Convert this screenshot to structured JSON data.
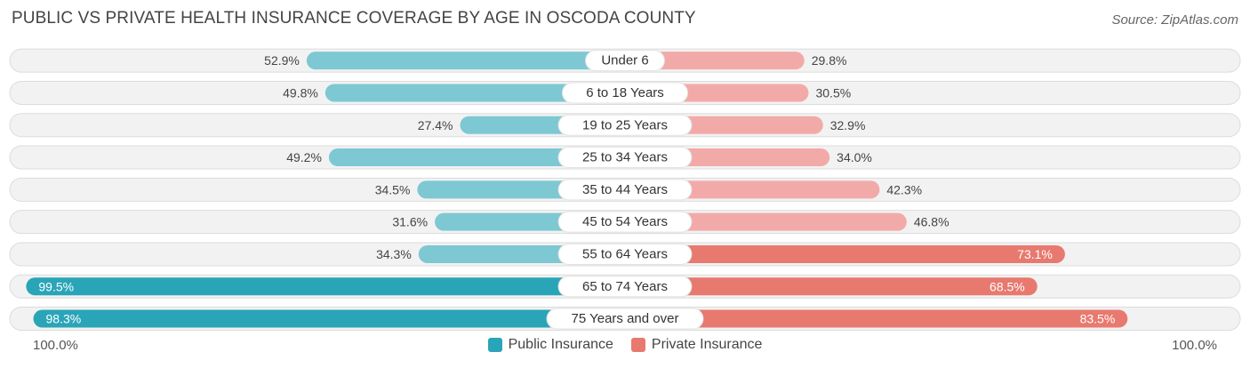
{
  "title": "PUBLIC VS PRIVATE HEALTH INSURANCE COVERAGE BY AGE IN OSCODA COUNTY",
  "source": "Source: ZipAtlas.com",
  "axis": {
    "left_label": "100.0%",
    "right_label": "100.0%"
  },
  "legend": {
    "public": "Public Insurance",
    "private": "Private Insurance"
  },
  "colors": {
    "public": "#7dc8d3",
    "public_strong": "#2aa5b8",
    "private": "#f2aaa8",
    "private_strong": "#e8796f",
    "row_bg": "#f2f2f2",
    "row_border": "#dcdcdc"
  },
  "chart_data": {
    "type": "bar",
    "orientation": "horizontal-diverging",
    "title": "PUBLIC VS PRIVATE HEALTH INSURANCE COVERAGE BY AGE IN OSCODA COUNTY",
    "xlim": [
      -100,
      100
    ],
    "categories": [
      "Under 6",
      "6 to 18 Years",
      "19 to 25 Years",
      "25 to 34 Years",
      "35 to 44 Years",
      "45 to 54 Years",
      "55 to 64 Years",
      "65 to 74 Years",
      "75 Years and over"
    ],
    "series": [
      {
        "name": "Public Insurance",
        "values": [
          52.9,
          49.8,
          27.4,
          49.2,
          34.5,
          31.6,
          34.3,
          99.5,
          98.3
        ],
        "labels": [
          "52.9%",
          "49.8%",
          "27.4%",
          "49.2%",
          "34.5%",
          "31.6%",
          "34.3%",
          "99.5%",
          "98.3%"
        ]
      },
      {
        "name": "Private Insurance",
        "values": [
          29.8,
          30.5,
          32.9,
          34.0,
          42.3,
          46.8,
          73.1,
          68.5,
          83.5
        ],
        "labels": [
          "29.8%",
          "30.5%",
          "32.9%",
          "34.0%",
          "42.3%",
          "46.8%",
          "73.1%",
          "68.5%",
          "83.5%"
        ]
      }
    ]
  }
}
